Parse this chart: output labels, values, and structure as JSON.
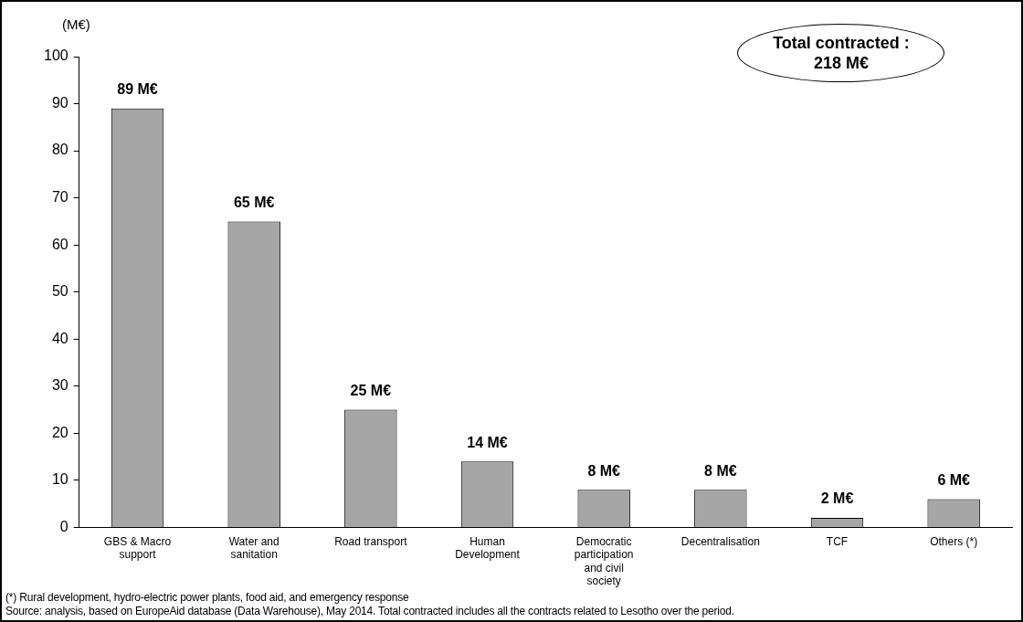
{
  "chart_data": {
    "type": "bar",
    "ylabel": "(M€)",
    "categories": [
      "GBS & Macro support",
      "Water and sanitation",
      "Road transport",
      "Human Development",
      "Democratic participation and civil society",
      "Decentralisation",
      "TCF",
      "Others (*)"
    ],
    "values": [
      89,
      65,
      25,
      14,
      8,
      8,
      2,
      6
    ],
    "value_labels": [
      "89 M€",
      "65 M€",
      "25 M€",
      "14 M€",
      "8 M€",
      "8 M€",
      "2 M€",
      "6 M€"
    ],
    "color": "#a6a6a6",
    "ylim": [
      0,
      100
    ],
    "yticks": [
      0,
      10,
      20,
      30,
      40,
      50,
      60,
      70,
      80,
      90,
      100
    ],
    "grid": false,
    "legend": false,
    "annotations": [
      "Total contracted :\n218 M€",
      "(*) Rural development, hydro-electric power plants, food aid,  and emergency response",
      "Source: analysis, based on EuropeAid database (Data Warehouse), May 2014. Total contracted includes all the contracts related to Lesotho over the period."
    ]
  }
}
